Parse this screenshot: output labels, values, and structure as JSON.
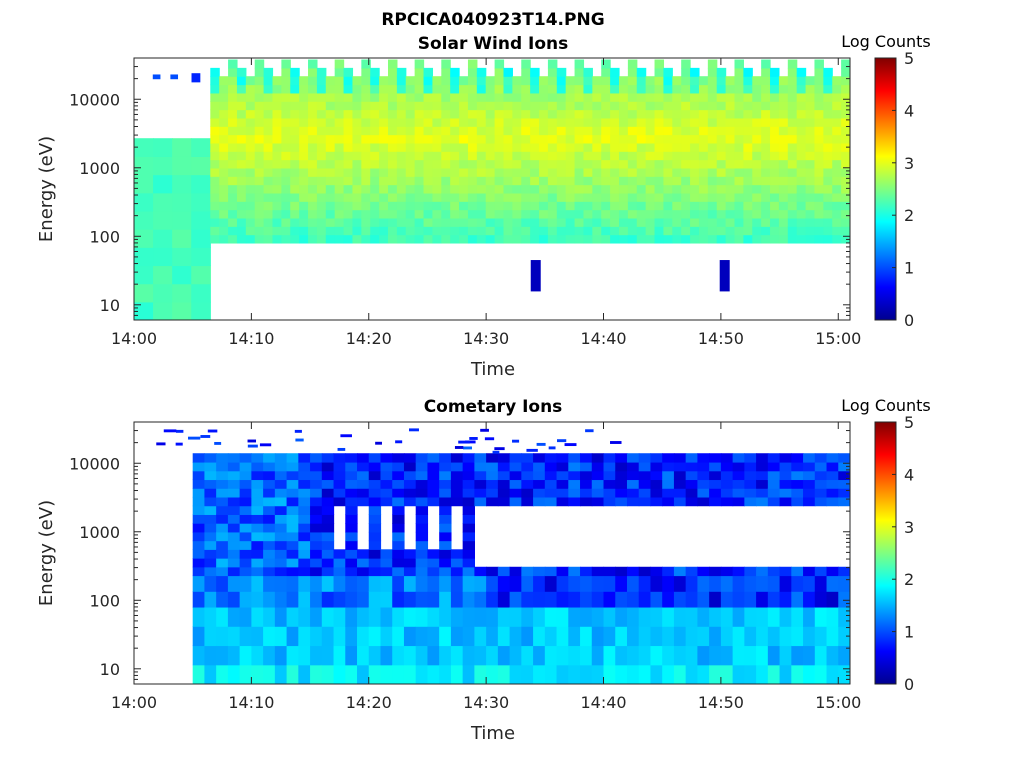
{
  "figure_title": "RPCICA040923T14.PNG",
  "chart_data": [
    {
      "type": "heatmap",
      "title": "Solar Wind Ions",
      "xlabel": "Time",
      "ylabel": "Energy (eV)",
      "x_ticks": [
        "14:00",
        "14:10",
        "14:20",
        "14:30",
        "14:40",
        "14:50",
        "15:00"
      ],
      "x_range_minutes": [
        0,
        61
      ],
      "y_scale": "log",
      "y_ticks": [
        "10",
        "100",
        "1000",
        "10000"
      ],
      "y_range": [
        6,
        40000
      ],
      "colorbar": {
        "label": "Log Counts",
        "min": 0,
        "max": 5,
        "ticks": [
          "0",
          "1",
          "2",
          "3",
          "4",
          "5"
        ]
      },
      "colormap": "jet",
      "summary": {
        "early_block": {
          "minutes": [
            0,
            6.5
          ],
          "energy_eV": [
            6,
            2700
          ],
          "log_counts": 2.2
        },
        "sweeps": {
          "minutes": [
            6.5,
            61
          ],
          "energy_eV": [
            80,
            38000
          ],
          "peak_log_counts": 3.0,
          "peak_energy_eV": 3000
        },
        "isolated_blobs": [
          {
            "minute": 34.2,
            "energy_eV": [
              16,
              45
            ],
            "log_counts": 0.3
          },
          {
            "minute": 50.3,
            "energy_eV": [
              16,
              45
            ],
            "log_counts": 0.3
          }
        ]
      }
    },
    {
      "type": "heatmap",
      "title": "Cometary Ions",
      "xlabel": "Time",
      "ylabel": "Energy (eV)",
      "x_ticks": [
        "14:00",
        "14:10",
        "14:20",
        "14:30",
        "14:40",
        "14:50",
        "15:00"
      ],
      "x_range_minutes": [
        0,
        61
      ],
      "y_scale": "log",
      "y_ticks": [
        "10",
        "100",
        "1000",
        "10000"
      ],
      "y_range": [
        6,
        40000
      ],
      "colorbar": {
        "label": "Log Counts",
        "min": 0,
        "max": 5,
        "ticks": [
          "0",
          "1",
          "2",
          "3",
          "4",
          "5"
        ]
      },
      "colormap": "jet",
      "summary": {
        "low_energy_band": {
          "minutes": [
            5,
            61
          ],
          "energy_eV": [
            6,
            80
          ],
          "log_counts": 1.6
        },
        "mid_band": {
          "minutes": [
            5,
            61
          ],
          "energy_eV": [
            80,
            230
          ],
          "log_counts": 1.2
        },
        "high_band": {
          "minutes": [
            5,
            61
          ],
          "energy_eV": [
            230,
            14000
          ],
          "log_counts": 0.8
        }
      }
    }
  ]
}
